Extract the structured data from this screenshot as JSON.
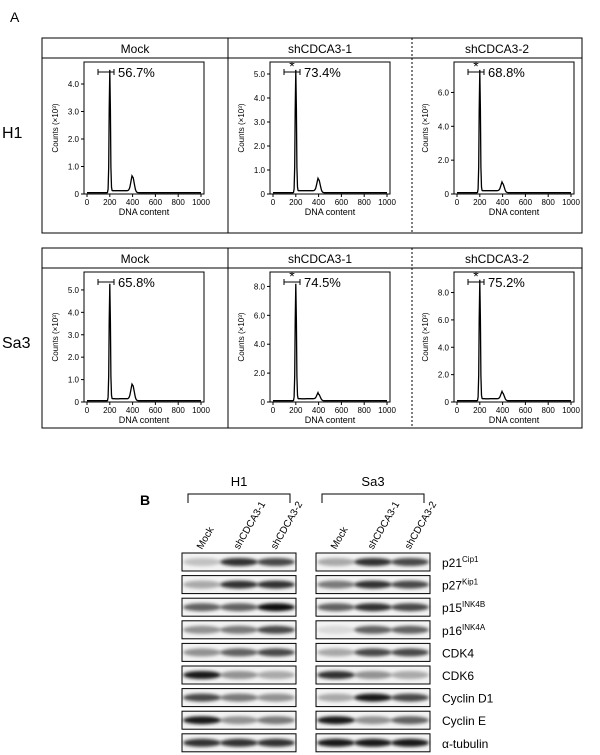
{
  "panel_a": {
    "label": "A",
    "x_label": "DNA content",
    "y_label": "Counts (×10³)",
    "xlim": [
      0,
      1000
    ],
    "xticks": [
      0,
      200,
      400,
      600,
      800,
      1000
    ],
    "rows": [
      {
        "label": "H1",
        "plots": [
          {
            "title": "Mock",
            "percent": "56.7%",
            "ylim": [
              0,
              4.8
            ],
            "yticks": [
              0,
              {
                "value": 1,
                "label": "1.0"
              },
              {
                "value": 2,
                "label": "2.0"
              },
              {
                "value": 3,
                "label": "3.0"
              },
              {
                "value": 4,
                "label": "4.0"
              }
            ]
          },
          {
            "title": "shCDCA3-1",
            "marker": "*",
            "percent": "73.4%",
            "ylim": [
              0,
              5.5
            ],
            "yticks": [
              0,
              {
                "value": 1,
                "label": "1.0"
              },
              {
                "value": 2,
                "label": "2.0"
              },
              {
                "value": 3,
                "label": "3.0"
              },
              {
                "value": 4,
                "label": "4.0"
              },
              {
                "value": 5,
                "label": "5.0"
              }
            ]
          },
          {
            "title": "shCDCA3-2",
            "marker": "*",
            "percent": "68.8%",
            "ylim": [
              0,
              7.8
            ],
            "yticks": [
              0,
              {
                "value": 2,
                "label": "2.0"
              },
              {
                "value": 4,
                "label": "4.0"
              },
              {
                "value": 6,
                "label": "6.0"
              }
            ]
          }
        ]
      },
      {
        "label": "Sa3",
        "plots": [
          {
            "title": "Mock",
            "percent": "65.8%",
            "ylim": [
              0,
              5.8
            ],
            "yticks": [
              0,
              {
                "value": 1,
                "label": "1.0"
              },
              {
                "value": 2,
                "label": "2.0"
              },
              {
                "value": 3,
                "label": "3.0"
              },
              {
                "value": 4,
                "label": "4.0"
              },
              {
                "value": 5,
                "label": "5.0"
              }
            ]
          },
          {
            "title": "shCDCA3-1",
            "marker": "*",
            "percent": "74.5%",
            "ylim": [
              0,
              9
            ],
            "yticks": [
              0,
              {
                "value": 2,
                "label": "2.0"
              },
              {
                "value": 4,
                "label": "4.0"
              },
              {
                "value": 6,
                "label": "6.0"
              },
              {
                "value": 8,
                "label": "8.0"
              }
            ]
          },
          {
            "title": "shCDCA3-2",
            "marker": "*",
            "percent": "75.2%",
            "ylim": [
              0,
              9.5
            ],
            "yticks": [
              0,
              {
                "value": 2,
                "label": "2.0"
              },
              {
                "value": 4,
                "label": "4.0"
              },
              {
                "value": 6,
                "label": "6.0"
              },
              {
                "value": 8,
                "label": "8.0"
              }
            ]
          }
        ]
      }
    ]
  },
  "panel_b": {
    "label": "B",
    "groups": [
      {
        "name": "H1",
        "lanes": [
          "Mock",
          "shCDCA3-1",
          "shCDCA3-2"
        ]
      },
      {
        "name": "Sa3",
        "lanes": [
          "Mock",
          "shCDCA3-1",
          "shCDCA3-2"
        ]
      }
    ],
    "proteins": [
      {
        "name": "p21",
        "sup": "Cip1"
      },
      {
        "name": "p27",
        "sup": "Kip1"
      },
      {
        "name": "p15",
        "sup": "INK4B"
      },
      {
        "name": "p16",
        "sup": "INK4A"
      },
      {
        "name": "CDK4"
      },
      {
        "name": "CDK6"
      },
      {
        "name": "Cyclin D1"
      },
      {
        "name": "Cyclin E"
      },
      {
        "name": "α-tubulin"
      }
    ]
  }
}
